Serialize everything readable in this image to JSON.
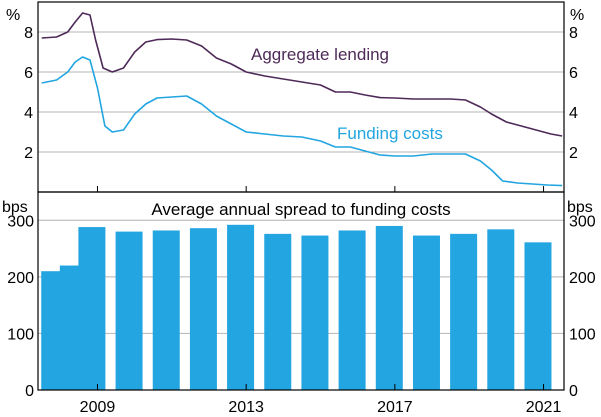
{
  "chart_data": [
    {
      "type": "line",
      "unit_left": "%",
      "unit_right": "%",
      "ylim": [
        0,
        9.5
      ],
      "yticks": [
        2,
        4,
        6,
        8
      ],
      "series": [
        {
          "name": "Aggregate lending",
          "label": "Aggregate lending",
          "color": "#4e2a58",
          "points": [
            [
              2007.5,
              7.7
            ],
            [
              2007.9,
              7.75
            ],
            [
              2008.2,
              8.0
            ],
            [
              2008.4,
              8.5
            ],
            [
              2008.6,
              8.95
            ],
            [
              2008.8,
              8.85
            ],
            [
              2008.95,
              7.6
            ],
            [
              2009.15,
              6.2
            ],
            [
              2009.4,
              6.0
            ],
            [
              2009.7,
              6.2
            ],
            [
              2010.0,
              7.0
            ],
            [
              2010.3,
              7.5
            ],
            [
              2010.6,
              7.62
            ],
            [
              2011.0,
              7.65
            ],
            [
              2011.4,
              7.6
            ],
            [
              2011.8,
              7.3
            ],
            [
              2012.2,
              6.7
            ],
            [
              2012.6,
              6.4
            ],
            [
              2013.0,
              6.0
            ],
            [
              2013.5,
              5.8
            ],
            [
              2014.0,
              5.65
            ],
            [
              2014.5,
              5.5
            ],
            [
              2015.0,
              5.35
            ],
            [
              2015.4,
              5.0
            ],
            [
              2015.8,
              5.0
            ],
            [
              2016.2,
              4.85
            ],
            [
              2016.6,
              4.72
            ],
            [
              2017.0,
              4.7
            ],
            [
              2017.5,
              4.65
            ],
            [
              2018.0,
              4.65
            ],
            [
              2018.5,
              4.65
            ],
            [
              2018.9,
              4.6
            ],
            [
              2019.3,
              4.25
            ],
            [
              2019.6,
              3.9
            ],
            [
              2020.0,
              3.5
            ],
            [
              2020.4,
              3.3
            ],
            [
              2020.8,
              3.1
            ],
            [
              2021.2,
              2.9
            ],
            [
              2021.5,
              2.8
            ]
          ]
        },
        {
          "name": "Funding costs",
          "label": "Funding costs",
          "color": "#22a5e0",
          "points": [
            [
              2007.5,
              5.45
            ],
            [
              2007.9,
              5.6
            ],
            [
              2008.2,
              6.0
            ],
            [
              2008.4,
              6.5
            ],
            [
              2008.6,
              6.75
            ],
            [
              2008.8,
              6.6
            ],
            [
              2009.0,
              5.2
            ],
            [
              2009.2,
              3.3
            ],
            [
              2009.4,
              3.0
            ],
            [
              2009.7,
              3.1
            ],
            [
              2010.0,
              3.9
            ],
            [
              2010.3,
              4.4
            ],
            [
              2010.6,
              4.7
            ],
            [
              2011.0,
              4.75
            ],
            [
              2011.4,
              4.8
            ],
            [
              2011.8,
              4.4
            ],
            [
              2012.2,
              3.8
            ],
            [
              2012.6,
              3.4
            ],
            [
              2013.0,
              3.0
            ],
            [
              2013.5,
              2.9
            ],
            [
              2014.0,
              2.8
            ],
            [
              2014.5,
              2.75
            ],
            [
              2015.0,
              2.55
            ],
            [
              2015.4,
              2.25
            ],
            [
              2015.8,
              2.25
            ],
            [
              2016.2,
              2.05
            ],
            [
              2016.6,
              1.85
            ],
            [
              2017.0,
              1.8
            ],
            [
              2017.5,
              1.8
            ],
            [
              2018.0,
              1.9
            ],
            [
              2018.5,
              1.9
            ],
            [
              2018.9,
              1.9
            ],
            [
              2019.3,
              1.55
            ],
            [
              2019.6,
              1.1
            ],
            [
              2019.9,
              0.55
            ],
            [
              2020.3,
              0.45
            ],
            [
              2020.7,
              0.4
            ],
            [
              2021.1,
              0.35
            ],
            [
              2021.5,
              0.32
            ]
          ]
        }
      ]
    },
    {
      "type": "bar",
      "title": "Average annual spread to funding costs",
      "unit_left": "bps",
      "unit_right": "bps",
      "ylim": [
        0,
        350
      ],
      "yticks": [
        0,
        100,
        200,
        300
      ],
      "color": "#22a5e0",
      "categories": [
        "2008",
        "2008.5",
        "2009",
        "2010",
        "2011",
        "2012",
        "2013",
        "2014",
        "2015",
        "2016",
        "2017",
        "2018",
        "2019",
        "2020",
        "2021"
      ],
      "x": [
        2007.85,
        2008.35,
        2008.85,
        2009.85,
        2010.85,
        2011.85,
        2012.85,
        2013.85,
        2014.85,
        2015.85,
        2016.85,
        2017.85,
        2018.85,
        2019.85,
        2020.85
      ],
      "values": [
        210,
        220,
        288,
        280,
        282,
        286,
        292,
        276,
        273,
        282,
        290,
        273,
        276,
        284,
        261
      ]
    }
  ],
  "x_axis": {
    "xlim": [
      2007.4,
      2021.55
    ],
    "tick_labels": [
      "2009",
      "2013",
      "2017",
      "2021"
    ],
    "tick_positions": [
      2009,
      2013,
      2017,
      2021
    ]
  }
}
